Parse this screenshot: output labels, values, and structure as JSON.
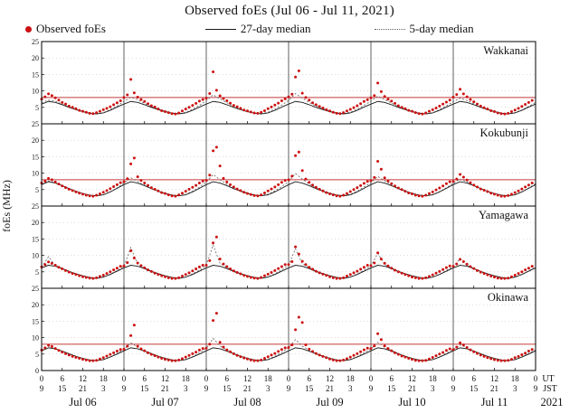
{
  "title": "Observed foEs (Jul 06 - Jul 11, 2021)",
  "ylabel": "foEs (MHz)",
  "legend": {
    "observed_label": "Observed foEs",
    "median27_label": "27-day median",
    "median5_label": "5-day median"
  },
  "axis": {
    "ut_label": "UT",
    "jst_label": "JST",
    "year": "2021",
    "day_labels": [
      "Jul 06",
      "Jul 07",
      "Jul 08",
      "Jul 09",
      "Jul 10",
      "Jul 11"
    ],
    "ut_cycle": [
      0,
      6,
      12,
      18
    ],
    "jst_cycle": [
      9,
      15,
      21,
      3
    ],
    "yticks": [
      0,
      5,
      10,
      15,
      20,
      25
    ]
  },
  "colors": {
    "observed": "#cc1111",
    "median27": "#1a1a1a",
    "median5": "#606060",
    "threshold": "#c43b3b",
    "grid": "#b9b9b9",
    "frame": "#000000",
    "dayline": "#3a3a3a"
  },
  "chart_data": {
    "type": "scatter+line",
    "x_range_hours": [
      0,
      144
    ],
    "ylim": [
      0,
      25
    ],
    "sample_interval_hours": {
      "observed": 1,
      "medians": 2
    },
    "stations": [
      {
        "name": "Wakkanai",
        "threshold_mhz": 8,
        "observed": [
          7.5,
          8.2,
          9.1,
          8.6,
          7.9,
          7.2,
          6.5,
          6.0,
          5.4,
          5.0,
          4.6,
          4.1,
          3.8,
          3.5,
          3.2,
          3.1,
          3.4,
          3.8,
          4.3,
          4.7,
          5.2,
          5.8,
          6.4,
          7.0,
          8.0,
          8.8,
          13.5,
          9.4,
          8.1,
          7.4,
          6.8,
          6.1,
          5.5,
          5.1,
          4.5,
          4.0,
          3.7,
          3.4,
          3.1,
          3.0,
          3.3,
          3.9,
          4.5,
          5.0,
          5.6,
          6.2,
          6.9,
          7.4,
          7.8,
          9.2,
          15.8,
          10.2,
          8.5,
          7.7,
          7.0,
          6.3,
          5.6,
          5.2,
          4.7,
          4.2,
          3.9,
          3.6,
          3.3,
          3.2,
          3.5,
          4.0,
          4.6,
          5.1,
          5.7,
          6.3,
          7.0,
          7.6,
          8.2,
          9.0,
          14.2,
          16.1,
          9.3,
          8.0,
          7.2,
          6.4,
          5.8,
          5.3,
          4.8,
          4.3,
          3.9,
          3.5,
          3.2,
          3.1,
          3.4,
          3.9,
          4.4,
          4.9,
          5.5,
          6.1,
          6.8,
          7.3,
          7.9,
          8.6,
          12.4,
          9.8,
          8.3,
          7.5,
          6.9,
          6.2,
          5.5,
          5.0,
          4.6,
          4.1,
          3.8,
          3.4,
          3.1,
          3.0,
          3.3,
          3.8,
          4.3,
          4.8,
          5.4,
          6.0,
          6.6,
          7.2,
          8.1,
          8.9,
          10.5,
          9.1,
          8.2,
          7.4,
          6.7,
          6.0,
          5.4,
          4.9,
          4.5,
          4.0,
          3.7,
          3.3,
          3.1,
          3.0,
          3.2,
          3.7,
          4.2,
          4.7,
          5.3,
          5.9,
          6.5,
          7.1
        ],
        "median27": [
          6.0,
          6.8,
          6.5,
          5.8,
          5.0,
          4.3,
          3.7,
          3.2,
          3.0,
          3.3,
          4.1,
          5.1,
          6.0,
          6.8,
          6.5,
          5.8,
          5.0,
          4.3,
          3.7,
          3.2,
          3.0,
          3.3,
          4.1,
          5.1,
          6.0,
          6.8,
          6.5,
          5.8,
          5.0,
          4.3,
          3.7,
          3.2,
          3.0,
          3.3,
          4.1,
          5.1,
          6.0,
          6.8,
          6.5,
          5.8,
          5.0,
          4.3,
          3.7,
          3.2,
          3.0,
          3.3,
          4.1,
          5.1,
          6.0,
          6.8,
          6.5,
          5.8,
          5.0,
          4.3,
          3.7,
          3.2,
          3.0,
          3.3,
          4.1,
          5.1,
          6.0,
          6.8,
          6.5,
          5.8,
          5.0,
          4.3,
          3.7,
          3.2,
          3.0,
          3.3,
          4.1,
          5.1,
          6.0
        ],
        "median5": [
          6.4,
          7.2,
          6.9,
          6.0,
          5.1,
          4.4,
          3.8,
          3.3,
          3.0,
          3.4,
          4.3,
          5.4,
          6.8,
          8.1,
          7.3,
          6.2,
          5.2,
          4.5,
          3.8,
          3.3,
          3.1,
          3.5,
          4.4,
          5.6,
          7.0,
          8.8,
          7.6,
          6.4,
          5.3,
          4.5,
          3.9,
          3.4,
          3.1,
          3.5,
          4.5,
          5.7,
          7.1,
          9.2,
          7.8,
          6.5,
          5.4,
          4.6,
          3.9,
          3.4,
          3.1,
          3.5,
          4.4,
          5.6,
          6.9,
          8.4,
          7.4,
          6.3,
          5.2,
          4.5,
          3.8,
          3.3,
          3.0,
          3.4,
          4.3,
          5.5,
          6.7,
          7.8,
          7.1,
          6.1,
          5.1,
          4.4,
          3.8,
          3.3,
          3.0,
          3.4,
          4.2,
          5.3,
          6.5
        ]
      },
      {
        "name": "Kokubunji",
        "threshold_mhz": 8,
        "observed": [
          7.0,
          7.6,
          8.4,
          8.0,
          7.3,
          6.7,
          6.1,
          5.6,
          5.1,
          4.7,
          4.3,
          3.9,
          3.6,
          3.3,
          3.1,
          3.0,
          3.3,
          3.7,
          4.2,
          4.7,
          5.3,
          5.9,
          6.5,
          7.1,
          7.4,
          8.3,
          12.8,
          14.6,
          8.9,
          7.8,
          7.0,
          6.3,
          5.6,
          5.1,
          4.6,
          4.1,
          3.8,
          3.4,
          3.1,
          3.0,
          3.4,
          3.9,
          4.5,
          5.1,
          5.7,
          6.3,
          7.0,
          7.6,
          7.8,
          9.4,
          16.8,
          17.9,
          12.2,
          8.4,
          7.3,
          6.5,
          5.8,
          5.2,
          4.7,
          4.2,
          3.8,
          3.5,
          3.2,
          3.1,
          3.4,
          4.0,
          4.6,
          5.2,
          5.8,
          6.5,
          7.2,
          7.8,
          8.0,
          9.1,
          15.3,
          16.4,
          10.8,
          8.2,
          7.2,
          6.4,
          5.7,
          5.1,
          4.6,
          4.1,
          3.7,
          3.4,
          3.1,
          3.0,
          3.3,
          3.8,
          4.4,
          5.0,
          5.6,
          6.2,
          6.9,
          7.5,
          7.7,
          8.7,
          13.6,
          11.2,
          8.6,
          7.6,
          6.8,
          6.1,
          5.5,
          5.0,
          4.5,
          4.0,
          3.7,
          3.3,
          3.1,
          3.0,
          3.3,
          3.8,
          4.3,
          4.9,
          5.5,
          6.1,
          6.8,
          7.4,
          7.5,
          8.2,
          9.6,
          8.8,
          7.9,
          7.1,
          6.4,
          5.8,
          5.2,
          4.8,
          4.4,
          3.9,
          3.6,
          3.3,
          3.0,
          3.0,
          3.2,
          3.6,
          4.1,
          4.6,
          5.2,
          5.8,
          6.4,
          7.0
        ],
        "median27": [
          6.5,
          7.4,
          7.0,
          6.2,
          5.3,
          4.5,
          3.8,
          3.3,
          3.1,
          3.4,
          4.3,
          5.4,
          6.5,
          7.4,
          7.0,
          6.2,
          5.3,
          4.5,
          3.8,
          3.3,
          3.1,
          3.4,
          4.3,
          5.4,
          6.5,
          7.4,
          7.0,
          6.2,
          5.3,
          4.5,
          3.8,
          3.3,
          3.1,
          3.4,
          4.3,
          5.4,
          6.5,
          7.4,
          7.0,
          6.2,
          5.3,
          4.5,
          3.8,
          3.3,
          3.1,
          3.4,
          4.3,
          5.4,
          6.5,
          7.4,
          7.0,
          6.2,
          5.3,
          4.5,
          3.8,
          3.3,
          3.1,
          3.4,
          4.3,
          5.4,
          6.5,
          7.4,
          7.0,
          6.2,
          5.3,
          4.5,
          3.8,
          3.3,
          3.1,
          3.4,
          4.3,
          5.4,
          6.5
        ],
        "median5": [
          6.6,
          7.6,
          7.1,
          6.2,
          5.3,
          4.5,
          3.8,
          3.3,
          3.1,
          3.4,
          4.3,
          5.5,
          7.0,
          8.6,
          7.5,
          6.4,
          5.4,
          4.6,
          3.9,
          3.4,
          3.1,
          3.5,
          4.5,
          5.7,
          7.3,
          9.6,
          8.0,
          6.6,
          5.5,
          4.7,
          4.0,
          3.4,
          3.2,
          3.6,
          4.6,
          5.9,
          7.4,
          9.9,
          8.2,
          6.7,
          5.5,
          4.7,
          4.0,
          3.4,
          3.2,
          3.6,
          4.5,
          5.8,
          7.1,
          9.0,
          7.7,
          6.5,
          5.4,
          4.6,
          3.9,
          3.4,
          3.1,
          3.5,
          4.4,
          5.6,
          6.9,
          8.2,
          7.3,
          6.3,
          5.2,
          4.5,
          3.8,
          3.3,
          3.1,
          3.4,
          4.3,
          5.5,
          6.8
        ]
      },
      {
        "name": "Yamagawa",
        "threshold_mhz": null,
        "observed": [
          6.5,
          7.2,
          8.0,
          7.6,
          7.0,
          6.4,
          5.9,
          5.4,
          4.9,
          4.5,
          4.2,
          3.8,
          3.5,
          3.3,
          3.1,
          3.0,
          3.2,
          3.6,
          4.0,
          4.5,
          5.0,
          5.6,
          6.1,
          6.7,
          6.8,
          7.8,
          11.4,
          9.2,
          7.7,
          6.9,
          6.2,
          5.6,
          5.1,
          4.6,
          4.2,
          3.8,
          3.5,
          3.2,
          3.0,
          3.0,
          3.2,
          3.7,
          4.2,
          4.7,
          5.3,
          5.9,
          6.5,
          7.0,
          7.0,
          8.4,
          13.8,
          15.6,
          8.9,
          7.4,
          6.6,
          5.9,
          5.3,
          4.8,
          4.4,
          3.9,
          3.6,
          3.3,
          3.1,
          3.0,
          3.3,
          3.8,
          4.3,
          4.8,
          5.4,
          6.0,
          6.6,
          7.2,
          7.2,
          8.1,
          12.6,
          10.4,
          8.2,
          7.2,
          6.4,
          5.8,
          5.2,
          4.7,
          4.3,
          3.9,
          3.5,
          3.2,
          3.0,
          3.0,
          3.2,
          3.7,
          4.2,
          4.7,
          5.2,
          5.8,
          6.4,
          7.0,
          6.9,
          7.7,
          10.8,
          8.9,
          7.6,
          6.8,
          6.1,
          5.5,
          5.0,
          4.6,
          4.2,
          3.8,
          3.4,
          3.2,
          3.0,
          3.0,
          3.2,
          3.6,
          4.1,
          4.6,
          5.1,
          5.7,
          6.3,
          6.8,
          6.7,
          7.4,
          8.8,
          8.1,
          7.3,
          6.6,
          6.0,
          5.4,
          4.9,
          4.5,
          4.1,
          3.7,
          3.4,
          3.1,
          3.0,
          3.0,
          3.1,
          3.5,
          4.0,
          4.5,
          5.0,
          5.6,
          6.1,
          6.7
        ],
        "median27": [
          6.2,
          7.0,
          6.7,
          6.0,
          5.1,
          4.4,
          3.8,
          3.3,
          3.0,
          3.4,
          4.2,
          5.2,
          6.2,
          7.0,
          6.7,
          6.0,
          5.1,
          4.4,
          3.8,
          3.3,
          3.0,
          3.4,
          4.2,
          5.2,
          6.2,
          7.0,
          6.7,
          6.0,
          5.1,
          4.4,
          3.8,
          3.3,
          3.0,
          3.4,
          4.2,
          5.2,
          6.2,
          7.0,
          6.7,
          6.0,
          5.1,
          4.4,
          3.8,
          3.3,
          3.0,
          3.4,
          4.2,
          5.2,
          6.2,
          7.0,
          6.7,
          6.0,
          5.1,
          4.4,
          3.8,
          3.3,
          3.0,
          3.4,
          4.2,
          5.2,
          6.2,
          7.0,
          6.7,
          6.0,
          5.1,
          4.4,
          3.8,
          3.3,
          3.0,
          3.4,
          4.2,
          5.2,
          6.2
        ],
        "median5": [
          6.4,
          9.6,
          7.0,
          6.0,
          5.2,
          4.4,
          3.8,
          3.3,
          3.0,
          3.4,
          4.3,
          5.4,
          6.7,
          12.4,
          7.3,
          6.2,
          5.2,
          4.5,
          3.8,
          3.3,
          3.0,
          3.4,
          4.4,
          5.5,
          6.9,
          13.2,
          7.6,
          6.3,
          5.3,
          4.5,
          3.9,
          3.3,
          3.1,
          3.5,
          4.4,
          5.6,
          7.0,
          12.0,
          7.5,
          6.3,
          5.3,
          4.5,
          3.9,
          3.3,
          3.1,
          3.5,
          4.3,
          5.5,
          6.8,
          10.6,
          7.2,
          6.2,
          5.2,
          4.4,
          3.8,
          3.3,
          3.0,
          3.4,
          4.2,
          5.4,
          6.6,
          9.0,
          7.0,
          6.0,
          5.1,
          4.4,
          3.8,
          3.2,
          3.0,
          3.3,
          4.2,
          5.3,
          6.4
        ]
      },
      {
        "name": "Okinawa",
        "threshold_mhz": 8,
        "observed": [
          6.2,
          6.9,
          7.7,
          7.3,
          6.7,
          6.1,
          5.6,
          5.1,
          4.7,
          4.3,
          4.0,
          3.7,
          3.4,
          3.2,
          3.0,
          3.0,
          3.1,
          3.5,
          3.9,
          4.4,
          4.9,
          5.4,
          5.9,
          6.4,
          6.5,
          7.4,
          10.6,
          13.8,
          7.4,
          6.6,
          6.0,
          5.4,
          4.9,
          4.5,
          4.1,
          3.7,
          3.4,
          3.2,
          3.0,
          3.0,
          3.2,
          3.6,
          4.1,
          4.6,
          5.1,
          5.6,
          6.2,
          6.7,
          6.8,
          8.0,
          15.2,
          17.4,
          8.6,
          7.1,
          6.3,
          5.7,
          5.1,
          4.6,
          4.2,
          3.8,
          3.5,
          3.2,
          3.0,
          3.0,
          3.2,
          3.7,
          4.2,
          4.7,
          5.2,
          5.8,
          6.4,
          6.9,
          7.0,
          7.8,
          12.4,
          16.2,
          14.6,
          7.8,
          6.5,
          5.8,
          5.2,
          4.7,
          4.3,
          3.9,
          3.5,
          3.2,
          3.0,
          3.0,
          3.2,
          3.6,
          4.1,
          4.6,
          5.1,
          5.7,
          6.3,
          6.8,
          6.7,
          7.5,
          11.2,
          9.4,
          7.5,
          6.7,
          6.0,
          5.4,
          4.9,
          4.4,
          4.1,
          3.7,
          3.4,
          3.1,
          3.0,
          3.0,
          3.1,
          3.5,
          4.0,
          4.5,
          5.0,
          5.5,
          6.1,
          6.6,
          6.4,
          7.1,
          8.4,
          7.8,
          7.0,
          6.3,
          5.7,
          5.2,
          4.7,
          4.3,
          3.9,
          3.6,
          3.3,
          3.1,
          3.0,
          3.0,
          3.1,
          3.4,
          3.9,
          4.3,
          4.8,
          5.3,
          5.9,
          6.4
        ],
        "median27": [
          6.0,
          6.9,
          6.6,
          5.9,
          5.1,
          4.3,
          3.7,
          3.2,
          3.0,
          3.3,
          4.1,
          5.0,
          6.0,
          6.9,
          6.6,
          5.9,
          5.1,
          4.3,
          3.7,
          3.2,
          3.0,
          3.3,
          4.1,
          5.0,
          6.0,
          6.9,
          6.6,
          5.9,
          5.1,
          4.3,
          3.7,
          3.2,
          3.0,
          3.3,
          4.1,
          5.0,
          6.0,
          6.9,
          6.6,
          5.9,
          5.1,
          4.3,
          3.7,
          3.2,
          3.0,
          3.3,
          4.1,
          5.0,
          6.0,
          6.9,
          6.6,
          5.9,
          5.1,
          4.3,
          3.7,
          3.2,
          3.0,
          3.3,
          4.1,
          5.0,
          6.0,
          6.9,
          6.6,
          5.9,
          5.1,
          4.3,
          3.7,
          3.2,
          3.0,
          3.3,
          4.1,
          5.0,
          6.0
        ],
        "median5": [
          6.2,
          7.4,
          6.8,
          5.9,
          5.1,
          4.3,
          3.7,
          3.2,
          3.0,
          3.3,
          4.1,
          5.2,
          6.5,
          8.4,
          7.1,
          6.1,
          5.2,
          4.4,
          3.8,
          3.3,
          3.0,
          3.4,
          4.2,
          5.4,
          6.8,
          9.8,
          7.5,
          6.3,
          5.3,
          4.5,
          3.8,
          3.3,
          3.1,
          3.4,
          4.3,
          5.5,
          6.9,
          9.4,
          7.4,
          6.2,
          5.2,
          4.4,
          3.8,
          3.3,
          3.0,
          3.4,
          4.2,
          5.4,
          6.6,
          8.6,
          7.1,
          6.1,
          5.1,
          4.4,
          3.7,
          3.2,
          3.0,
          3.3,
          4.1,
          5.3,
          6.4,
          7.8,
          6.9,
          5.9,
          5.0,
          4.3,
          3.7,
          3.2,
          3.0,
          3.3,
          4.1,
          5.2,
          6.2
        ]
      }
    ]
  }
}
